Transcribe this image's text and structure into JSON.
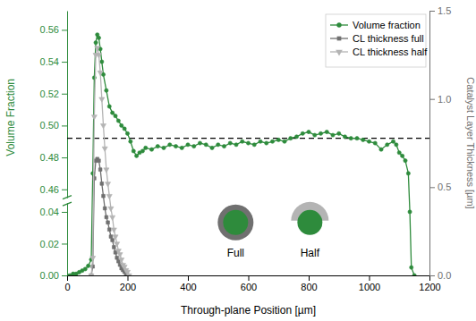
{
  "chart_data": {
    "type": "line",
    "x_label": "Through-plane Position [µm]",
    "y_label": "Volume Fraction",
    "y2_label": "Catalyst Layer Thickness [µm]",
    "xlim": [
      0,
      1200
    ],
    "xticks": [
      0,
      200,
      400,
      600,
      800,
      1000,
      1200
    ],
    "ylim": [
      0,
      0.572
    ],
    "ybreak": [
      0.045,
      0.455
    ],
    "yticks": [
      {
        "value": 0,
        "label": "0.00"
      },
      {
        "value": 0.02,
        "label": "0.02"
      },
      {
        "value": 0.04,
        "label": "0.04"
      },
      {
        "value": 0.46,
        "label": "0.46"
      },
      {
        "value": 0.48,
        "label": "0.48"
      },
      {
        "value": 0.5,
        "label": "0.50"
      },
      {
        "value": 0.52,
        "label": "0.52"
      },
      {
        "value": 0.54,
        "label": "0.54"
      },
      {
        "value": 0.56,
        "label": "0.56"
      }
    ],
    "y2lim": [
      0,
      1.5
    ],
    "y2ticks": [
      {
        "value": 0,
        "label": "0.0"
      },
      {
        "value": 0.5,
        "label": "0.5"
      },
      {
        "value": 1,
        "label": "1.0"
      },
      {
        "value": 1.5,
        "label": "1.5"
      }
    ],
    "legend": "upper right",
    "reference_line": {
      "value": 0.492,
      "line_style": "dashed"
    },
    "annotations": [
      {
        "text": "Full"
      },
      {
        "text": "Half"
      }
    ],
    "series": [
      {
        "name": "Volume fraction",
        "color": "#2e8b3c",
        "marker": "circle",
        "line_style": "solid",
        "x": [
          0,
          10,
          20,
          30,
          40,
          50,
          60,
          70,
          80,
          85,
          90,
          95,
          100,
          105,
          110,
          115,
          120,
          130,
          140,
          150,
          160,
          170,
          180,
          190,
          200,
          210,
          220,
          230,
          240,
          250,
          260,
          280,
          300,
          320,
          340,
          360,
          380,
          400,
          420,
          440,
          460,
          480,
          500,
          520,
          540,
          560,
          580,
          600,
          620,
          640,
          660,
          680,
          700,
          720,
          740,
          760,
          780,
          800,
          820,
          840,
          860,
          880,
          900,
          920,
          940,
          960,
          980,
          1000,
          1020,
          1040,
          1060,
          1080,
          1090,
          1100,
          1110,
          1120,
          1130,
          1135,
          1140,
          1150
        ],
        "values": [
          0,
          0,
          0.001,
          0.001,
          0.002,
          0.003,
          0.004,
          0.006,
          0.01,
          0.47,
          0.53,
          0.552,
          0.557,
          0.555,
          0.548,
          0.54,
          0.532,
          0.522,
          0.512,
          0.508,
          0.506,
          0.503,
          0.5,
          0.498,
          0.495,
          0.49,
          0.484,
          0.481,
          0.483,
          0.484,
          0.486,
          0.485,
          0.487,
          0.486,
          0.488,
          0.487,
          0.486,
          0.488,
          0.487,
          0.489,
          0.488,
          0.486,
          0.488,
          0.487,
          0.489,
          0.488,
          0.49,
          0.489,
          0.488,
          0.49,
          0.489,
          0.49,
          0.491,
          0.49,
          0.492,
          0.493,
          0.495,
          0.496,
          0.494,
          0.495,
          0.496,
          0.494,
          0.495,
          0.493,
          0.492,
          0.492,
          0.491,
          0.49,
          0.489,
          0.485,
          0.488,
          0.49,
          0.488,
          0.483,
          0.481,
          0.478,
          0.47,
          0.04,
          0.005,
          0
        ]
      },
      {
        "name": "CL thickness full",
        "color": "#707070",
        "marker": "square",
        "line_style": "solid",
        "axis": "y2",
        "x": [
          80,
          85,
          90,
          95,
          100,
          105,
          110,
          115,
          120,
          125,
          130,
          135,
          140,
          145,
          150,
          155,
          160,
          165,
          170,
          175,
          180,
          185,
          190,
          195,
          200
        ],
        "values": [
          0,
          0.05,
          0.55,
          0.65,
          0.66,
          0.65,
          0.6,
          0.52,
          0.45,
          0.38,
          0.33,
          0.3,
          0.26,
          0.22,
          0.2,
          0.16,
          0.13,
          0.1,
          0.08,
          0.06,
          0.04,
          0.03,
          0.02,
          0.01,
          0
        ]
      },
      {
        "name": "CL thickness half",
        "color": "#b4b4b4",
        "marker": "triangle-down",
        "line_style": "solid",
        "axis": "y2",
        "x": [
          80,
          85,
          90,
          95,
          100,
          105,
          110,
          115,
          120,
          125,
          130,
          135,
          140,
          145,
          150,
          155,
          160,
          165,
          170,
          175,
          180,
          185,
          190,
          195,
          200,
          205
        ],
        "values": [
          0,
          0.1,
          0.9,
          1.25,
          1.29,
          1.25,
          1.15,
          1,
          0.85,
          0.72,
          0.6,
          0.52,
          0.45,
          0.38,
          0.33,
          0.26,
          0.22,
          0.18,
          0.14,
          0.12,
          0.09,
          0.06,
          0.05,
          0.03,
          0.02,
          0
        ]
      }
    ]
  }
}
